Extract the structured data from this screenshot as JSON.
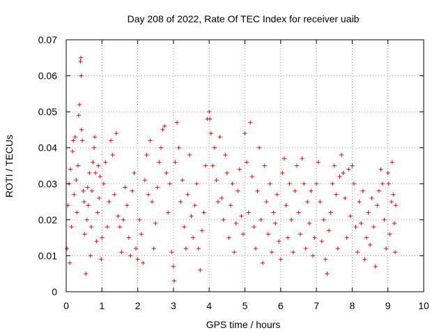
{
  "chart_data": {
    "type": "scatter",
    "title": "Day 208 of 2022, Rate Of TEC Index for receiver uaib",
    "xlabel": "GPS time / hours",
    "ylabel": "ROTI / TECUs",
    "xlim": [
      0,
      10
    ],
    "ylim": [
      0,
      0.07
    ],
    "x_ticks": [
      "0",
      "1",
      "2",
      "3",
      "4",
      "5",
      "6",
      "7",
      "8",
      "9",
      "10"
    ],
    "y_ticks": [
      "0",
      "0.01",
      "0.02",
      "0.03",
      "0.04",
      "0.05",
      "0.06",
      "0.07"
    ],
    "grid": true,
    "marker": "+",
    "color": "#ff0000",
    "series": [
      {
        "points": [
          [
            0.02,
            0.012
          ],
          [
            0.05,
            0.024
          ],
          [
            0.08,
            0.03
          ],
          [
            0.1,
            0.008
          ],
          [
            0.12,
            0.034
          ],
          [
            0.15,
            0.018
          ],
          [
            0.18,
            0.039
          ],
          [
            0.2,
            0.042
          ],
          [
            0.22,
            0.027
          ],
          [
            0.25,
            0.043
          ],
          [
            0.28,
            0.031
          ],
          [
            0.3,
            0.022
          ],
          [
            0.33,
            0.035
          ],
          [
            0.35,
            0.049
          ],
          [
            0.37,
            0.052
          ],
          [
            0.4,
            0.064
          ],
          [
            0.41,
            0.065
          ],
          [
            0.42,
            0.06
          ],
          [
            0.43,
            0.045
          ],
          [
            0.45,
            0.042
          ],
          [
            0.48,
            0.028
          ],
          [
            0.5,
            0.025
          ],
          [
            0.52,
            0.016
          ],
          [
            0.55,
            0.005
          ],
          [
            0.58,
            0.02
          ],
          [
            0.6,
            0.029
          ],
          [
            0.62,
            0.024
          ],
          [
            0.65,
            0.033
          ],
          [
            0.68,
            0.01
          ],
          [
            0.7,
            0.018
          ],
          [
            0.72,
            0.028
          ],
          [
            0.75,
            0.036
          ],
          [
            0.78,
            0.04
          ],
          [
            0.8,
            0.043
          ],
          [
            0.82,
            0.033
          ],
          [
            0.85,
            0.014
          ],
          [
            0.88,
            0.022
          ],
          [
            0.9,
            0.035
          ],
          [
            0.92,
            0.026
          ],
          [
            0.95,
            0.032
          ],
          [
            0.98,
            0.009
          ],
          [
            1.0,
            0.015
          ],
          [
            1.05,
            0.03
          ],
          [
            1.1,
            0.036
          ],
          [
            1.15,
            0.018
          ],
          [
            1.2,
            0.025
          ],
          [
            1.25,
            0.042
          ],
          [
            1.3,
            0.038
          ],
          [
            1.35,
            0.027
          ],
          [
            1.4,
            0.044
          ],
          [
            1.45,
            0.021
          ],
          [
            1.5,
            0.018
          ],
          [
            1.55,
            0.011
          ],
          [
            1.6,
            0.02
          ],
          [
            1.65,
            0.029
          ],
          [
            1.7,
            0.024
          ],
          [
            1.75,
            0.015
          ],
          [
            1.8,
            0.01
          ],
          [
            1.85,
            0.028
          ],
          [
            1.9,
            0.033
          ],
          [
            1.95,
            0.012
          ],
          [
            2.0,
            0.009
          ],
          [
            2.05,
            0.02
          ],
          [
            2.1,
            0.016
          ],
          [
            2.15,
            0.008
          ],
          [
            2.2,
            0.031
          ],
          [
            2.25,
            0.038
          ],
          [
            2.3,
            0.027
          ],
          [
            2.35,
            0.042
          ],
          [
            2.4,
            0.025
          ],
          [
            2.45,
            0.012
          ],
          [
            2.5,
            0.019
          ],
          [
            2.55,
            0.029
          ],
          [
            2.6,
            0.036
          ],
          [
            2.65,
            0.04
          ],
          [
            2.7,
            0.045
          ],
          [
            2.75,
            0.046
          ],
          [
            2.8,
            0.033
          ],
          [
            2.85,
            0.022
          ],
          [
            2.9,
            0.03
          ],
          [
            2.95,
            0.011
          ],
          [
            3.0,
            0.007
          ],
          [
            3.02,
            0.003
          ],
          [
            3.05,
            0.036
          ],
          [
            3.1,
            0.047
          ],
          [
            3.15,
            0.04
          ],
          [
            3.2,
            0.025
          ],
          [
            3.25,
            0.031
          ],
          [
            3.3,
            0.018
          ],
          [
            3.35,
            0.012
          ],
          [
            3.4,
            0.027
          ],
          [
            3.45,
            0.038
          ],
          [
            3.5,
            0.021
          ],
          [
            3.55,
            0.015
          ],
          [
            3.6,
            0.024
          ],
          [
            3.65,
            0.03
          ],
          [
            3.7,
            0.012
          ],
          [
            3.75,
            0.006
          ],
          [
            3.8,
            0.017
          ],
          [
            3.85,
            0.022
          ],
          [
            3.9,
            0.035
          ],
          [
            3.95,
            0.048
          ],
          [
            4.0,
            0.05
          ],
          [
            4.02,
            0.048
          ],
          [
            4.05,
            0.044
          ],
          [
            4.1,
            0.035
          ],
          [
            4.15,
            0.04
          ],
          [
            4.2,
            0.031
          ],
          [
            4.25,
            0.025
          ],
          [
            4.3,
            0.043
          ],
          [
            4.35,
            0.026
          ],
          [
            4.4,
            0.02
          ],
          [
            4.45,
            0.038
          ],
          [
            4.5,
            0.033
          ],
          [
            4.55,
            0.015
          ],
          [
            4.6,
            0.024
          ],
          [
            4.65,
            0.03
          ],
          [
            4.7,
            0.011
          ],
          [
            4.75,
            0.019
          ],
          [
            4.8,
            0.028
          ],
          [
            4.85,
            0.034
          ],
          [
            4.9,
            0.021
          ],
          [
            4.95,
            0.016
          ],
          [
            5.0,
            0.044
          ],
          [
            5.05,
            0.036
          ],
          [
            5.1,
            0.022
          ],
          [
            5.15,
            0.047
          ],
          [
            5.2,
            0.032
          ],
          [
            5.25,
            0.018
          ],
          [
            5.3,
            0.012
          ],
          [
            5.35,
            0.028
          ],
          [
            5.4,
            0.04
          ],
          [
            5.45,
            0.02
          ],
          [
            5.5,
            0.008
          ],
          [
            5.55,
            0.035
          ],
          [
            5.6,
            0.025
          ],
          [
            5.65,
            0.016
          ],
          [
            5.7,
            0.03
          ],
          [
            5.75,
            0.011
          ],
          [
            5.8,
            0.022
          ],
          [
            5.85,
            0.019
          ],
          [
            5.9,
            0.027
          ],
          [
            5.95,
            0.014
          ],
          [
            6.0,
            0.009
          ],
          [
            6.05,
            0.033
          ],
          [
            6.1,
            0.037
          ],
          [
            6.15,
            0.024
          ],
          [
            6.2,
            0.015
          ],
          [
            6.25,
            0.03
          ],
          [
            6.3,
            0.02
          ],
          [
            6.35,
            0.011
          ],
          [
            6.4,
            0.028
          ],
          [
            6.45,
            0.035
          ],
          [
            6.5,
            0.022
          ],
          [
            6.55,
            0.016
          ],
          [
            6.6,
            0.037
          ],
          [
            6.65,
            0.03
          ],
          [
            6.7,
            0.012
          ],
          [
            6.75,
            0.025
          ],
          [
            6.8,
            0.019
          ],
          [
            6.85,
            0.028
          ],
          [
            6.9,
            0.01
          ],
          [
            6.95,
            0.015
          ],
          [
            7.0,
            0.03
          ],
          [
            7.05,
            0.036
          ],
          [
            7.1,
            0.025
          ],
          [
            7.15,
            0.014
          ],
          [
            7.2,
            0.02
          ],
          [
            7.25,
            0.009
          ],
          [
            7.3,
            0.005
          ],
          [
            7.35,
            0.017
          ],
          [
            7.4,
            0.022
          ],
          [
            7.45,
            0.03
          ],
          [
            7.5,
            0.035
          ],
          [
            7.55,
            0.027
          ],
          [
            7.6,
            0.012
          ],
          [
            7.65,
            0.032
          ],
          [
            7.7,
            0.038
          ],
          [
            7.75,
            0.033
          ],
          [
            7.8,
            0.026
          ],
          [
            7.85,
            0.015
          ],
          [
            7.9,
            0.034
          ],
          [
            7.95,
            0.021
          ],
          [
            8.0,
            0.035
          ],
          [
            8.05,
            0.03
          ],
          [
            8.1,
            0.018
          ],
          [
            8.15,
            0.011
          ],
          [
            8.2,
            0.025
          ],
          [
            8.25,
            0.019
          ],
          [
            8.3,
            0.028
          ],
          [
            8.35,
            0.009
          ],
          [
            8.4,
            0.015
          ],
          [
            8.45,
            0.022
          ],
          [
            8.5,
            0.013
          ],
          [
            8.55,
            0.026
          ],
          [
            8.6,
            0.018
          ],
          [
            8.65,
            0.007
          ],
          [
            8.7,
            0.024
          ],
          [
            8.75,
            0.028
          ],
          [
            8.8,
            0.034
          ],
          [
            8.85,
            0.03
          ],
          [
            8.9,
            0.02
          ],
          [
            8.95,
            0.012
          ],
          [
            9.0,
            0.033
          ],
          [
            9.02,
            0.03
          ],
          [
            9.05,
            0.016
          ],
          [
            9.1,
            0.025
          ],
          [
            9.12,
            0.036
          ],
          [
            9.15,
            0.027
          ],
          [
            9.18,
            0.019
          ],
          [
            9.2,
            0.011
          ],
          [
            9.22,
            0.024
          ]
        ]
      }
    ]
  }
}
